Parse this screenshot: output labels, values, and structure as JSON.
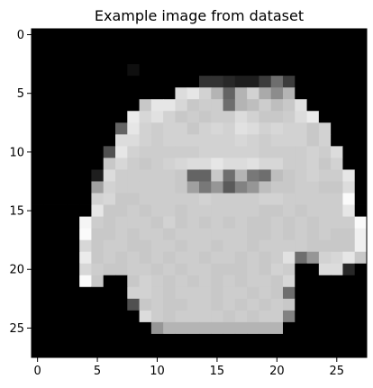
{
  "chart_data": {
    "type": "heatmap",
    "title": "Example image from dataset",
    "colormap": "gray",
    "value_range": [
      0,
      255
    ],
    "rows": 28,
    "cols": 28,
    "xlim": [
      -0.5,
      27.5
    ],
    "ylim": [
      27.5,
      -0.5
    ],
    "x_ticks": [
      0,
      5,
      10,
      15,
      20,
      25
    ],
    "y_ticks": [
      0,
      5,
      10,
      15,
      20,
      25
    ],
    "grid": false,
    "values": [
      [
        0,
        0,
        0,
        0,
        0,
        0,
        0,
        0,
        0,
        0,
        0,
        0,
        0,
        0,
        0,
        0,
        0,
        0,
        0,
        0,
        0,
        0,
        0,
        0,
        0,
        0,
        0,
        0
      ],
      [
        0,
        0,
        0,
        0,
        0,
        0,
        0,
        0,
        0,
        0,
        0,
        0,
        0,
        0,
        0,
        0,
        0,
        0,
        0,
        0,
        0,
        0,
        0,
        0,
        0,
        0,
        0,
        0
      ],
      [
        0,
        0,
        0,
        0,
        0,
        0,
        0,
        0,
        0,
        0,
        0,
        0,
        0,
        0,
        0,
        0,
        0,
        0,
        0,
        0,
        0,
        0,
        0,
        0,
        0,
        0,
        0,
        0
      ],
      [
        0,
        0,
        0,
        0,
        0,
        0,
        0,
        0,
        15,
        0,
        0,
        0,
        0,
        0,
        0,
        0,
        0,
        0,
        0,
        0,
        0,
        0,
        0,
        0,
        0,
        0,
        0,
        0
      ],
      [
        0,
        0,
        0,
        0,
        0,
        0,
        0,
        0,
        0,
        0,
        0,
        0,
        0,
        0,
        50,
        50,
        40,
        30,
        30,
        60,
        110,
        60,
        0,
        0,
        0,
        0,
        0,
        0
      ],
      [
        0,
        0,
        0,
        0,
        0,
        0,
        0,
        0,
        0,
        0,
        0,
        0,
        220,
        230,
        210,
        180,
        100,
        180,
        210,
        170,
        140,
        180,
        0,
        0,
        0,
        0,
        0,
        0
      ],
      [
        0,
        0,
        0,
        0,
        0,
        0,
        0,
        0,
        0,
        200,
        230,
        230,
        215,
        200,
        205,
        205,
        110,
        180,
        190,
        205,
        190,
        200,
        225,
        0,
        0,
        0,
        0,
        0
      ],
      [
        0,
        0,
        0,
        0,
        0,
        0,
        0,
        0,
        235,
        215,
        225,
        210,
        200,
        205,
        200,
        205,
        205,
        220,
        210,
        200,
        200,
        205,
        220,
        235,
        0,
        0,
        0,
        0
      ],
      [
        0,
        0,
        0,
        0,
        0,
        0,
        0,
        100,
        230,
        210,
        205,
        210,
        210,
        200,
        210,
        215,
        210,
        225,
        220,
        210,
        215,
        210,
        210,
        200,
        210,
        0,
        0,
        0
      ],
      [
        0,
        0,
        0,
        0,
        0,
        0,
        0,
        220,
        220,
        210,
        205,
        210,
        210,
        210,
        210,
        210,
        210,
        215,
        210,
        205,
        210,
        210,
        210,
        200,
        210,
        0,
        0,
        0
      ],
      [
        0,
        0,
        0,
        0,
        0,
        0,
        80,
        230,
        210,
        205,
        205,
        205,
        205,
        205,
        210,
        210,
        210,
        210,
        210,
        205,
        205,
        205,
        205,
        210,
        205,
        220,
        0,
        0
      ],
      [
        0,
        0,
        0,
        0,
        0,
        0,
        200,
        215,
        205,
        200,
        205,
        210,
        215,
        220,
        220,
        230,
        220,
        220,
        225,
        215,
        215,
        205,
        205,
        210,
        200,
        210,
        0,
        0
      ],
      [
        0,
        0,
        0,
        0,
        0,
        30,
        220,
        205,
        205,
        205,
        205,
        205,
        200,
        100,
        100,
        200,
        110,
        180,
        120,
        110,
        190,
        200,
        205,
        210,
        205,
        205,
        230,
        0
      ],
      [
        0,
        0,
        0,
        0,
        0,
        160,
        210,
        205,
        205,
        205,
        205,
        205,
        200,
        160,
        120,
        150,
        90,
        130,
        150,
        190,
        200,
        200,
        205,
        205,
        200,
        200,
        220,
        0
      ],
      [
        0,
        0,
        0,
        0,
        0,
        210,
        215,
        200,
        200,
        205,
        205,
        205,
        205,
        205,
        210,
        205,
        205,
        205,
        205,
        210,
        210,
        205,
        205,
        205,
        205,
        205,
        250,
        0
      ],
      [
        0,
        0,
        0,
        0,
        0,
        230,
        200,
        200,
        205,
        200,
        205,
        205,
        200,
        205,
        205,
        205,
        205,
        205,
        205,
        200,
        200,
        205,
        200,
        205,
        205,
        205,
        230,
        0
      ],
      [
        0,
        0,
        0,
        0,
        245,
        205,
        200,
        205,
        205,
        205,
        200,
        210,
        200,
        205,
        200,
        205,
        200,
        205,
        200,
        200,
        205,
        200,
        205,
        200,
        205,
        205,
        205,
        250
      ],
      [
        0,
        0,
        0,
        0,
        250,
        200,
        200,
        205,
        200,
        205,
        205,
        200,
        205,
        205,
        205,
        205,
        205,
        205,
        200,
        200,
        205,
        200,
        205,
        200,
        205,
        200,
        200,
        240
      ],
      [
        0,
        0,
        0,
        0,
        215,
        200,
        205,
        205,
        200,
        200,
        205,
        205,
        200,
        205,
        205,
        200,
        205,
        205,
        200,
        205,
        205,
        205,
        205,
        200,
        200,
        200,
        200,
        240
      ],
      [
        0,
        0,
        0,
        0,
        235,
        200,
        205,
        200,
        205,
        200,
        205,
        200,
        205,
        205,
        200,
        205,
        205,
        200,
        205,
        200,
        205,
        225,
        110,
        150,
        210,
        215,
        230,
        200
      ],
      [
        0,
        0,
        0,
        0,
        215,
        205,
        200,
        200,
        205,
        205,
        200,
        205,
        200,
        205,
        205,
        200,
        200,
        200,
        205,
        200,
        210,
        205,
        0,
        0,
        220,
        220,
        40,
        0
      ],
      [
        0,
        0,
        0,
        0,
        250,
        200,
        0,
        0,
        200,
        210,
        205,
        200,
        205,
        200,
        205,
        200,
        205,
        200,
        205,
        205,
        200,
        215,
        0,
        0,
        0,
        0,
        0,
        0
      ],
      [
        0,
        0,
        0,
        0,
        0,
        0,
        0,
        0,
        210,
        210,
        205,
        200,
        205,
        205,
        205,
        200,
        205,
        205,
        200,
        205,
        200,
        110,
        0,
        0,
        0,
        0,
        0,
        0
      ],
      [
        0,
        0,
        0,
        0,
        0,
        0,
        0,
        0,
        80,
        200,
        205,
        200,
        200,
        205,
        205,
        200,
        205,
        200,
        205,
        200,
        205,
        200,
        0,
        0,
        0,
        0,
        0,
        0
      ],
      [
        0,
        0,
        0,
        0,
        0,
        0,
        0,
        0,
        0,
        220,
        205,
        200,
        205,
        205,
        205,
        205,
        200,
        205,
        200,
        205,
        205,
        130,
        0,
        0,
        0,
        0,
        0,
        0
      ],
      [
        0,
        0,
        0,
        0,
        0,
        0,
        0,
        0,
        0,
        0,
        150,
        180,
        180,
        180,
        180,
        180,
        180,
        180,
        180,
        180,
        180,
        0,
        0,
        0,
        0,
        0,
        0,
        0
      ],
      [
        0,
        0,
        0,
        0,
        0,
        0,
        0,
        0,
        0,
        0,
        0,
        0,
        0,
        0,
        0,
        0,
        0,
        0,
        0,
        0,
        0,
        0,
        0,
        0,
        0,
        0,
        0,
        0
      ],
      [
        0,
        0,
        0,
        0,
        0,
        0,
        0,
        0,
        0,
        0,
        0,
        0,
        0,
        0,
        0,
        0,
        0,
        0,
        0,
        0,
        0,
        0,
        0,
        0,
        0,
        0,
        0,
        0
      ]
    ]
  }
}
